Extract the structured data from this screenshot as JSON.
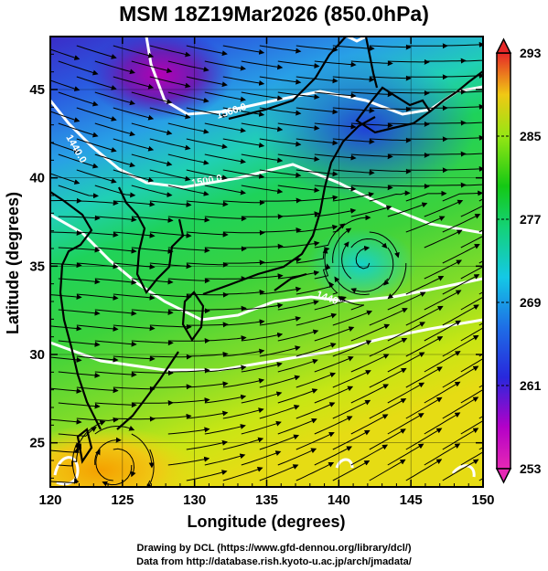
{
  "title": "MSM 18Z19Mar2026 (850.0hPa)",
  "x_axis_label": "Longitude (degrees)",
  "y_axis_label": "Latitude  (degrees)",
  "x_ticks": [
    "120",
    "125",
    "130",
    "135",
    "140",
    "145",
    "150"
  ],
  "y_ticks": [
    "25",
    "30",
    "35",
    "40",
    "45"
  ],
  "colorbar_labels": [
    "293",
    "285",
    "277",
    "269",
    "261",
    "253"
  ],
  "contour_labels": [
    "1560.0",
    "1500.0",
    "1440.0",
    "1440"
  ],
  "credit_line1": "Drawing by DCL (https://www.gfd-dennou.org/library/dcl/)",
  "credit_line2": "Data from http://database.rish.kyoto-u.ac.jp/arch/jmadata/",
  "colors": {
    "magenta": "#b400b4",
    "purple": "#5a1eb4",
    "blue": "#1e3cdc",
    "cyan": "#14c8e6",
    "green": "#14c814",
    "yellow_green": "#b4e614",
    "orange": "#f5a000",
    "red": "#e62828"
  },
  "map": {
    "lon_range": [
      120,
      150
    ],
    "lat_range": [
      22.5,
      48
    ],
    "variable": "temperature (K) shaded, geopotential height contours, wind streamlines",
    "colorbar_range": [
      253,
      293
    ]
  }
}
